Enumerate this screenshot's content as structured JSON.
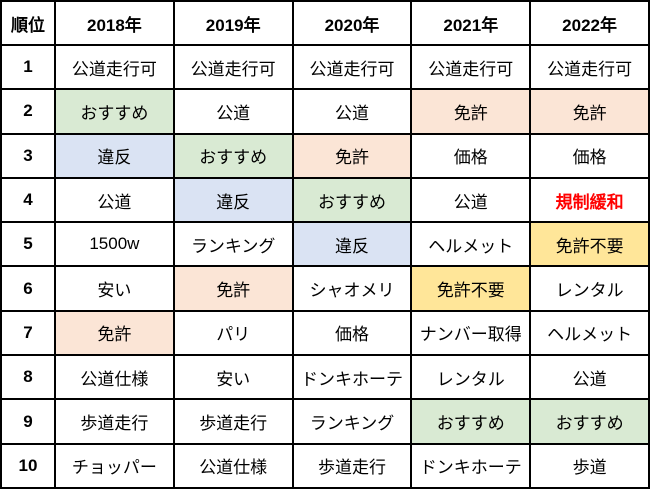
{
  "colors": {
    "border": "#000000",
    "green": "#d9ead3",
    "blue": "#dae3f3",
    "peach": "#fbe5d6",
    "yellow": "#ffe699",
    "red": "#ff0000"
  },
  "chart_data": {
    "type": "table",
    "columns": [
      "順位",
      "2018年",
      "2019年",
      "2020年",
      "2021年",
      "2022年"
    ],
    "rows": [
      {
        "rank": "1",
        "cells": [
          {
            "text": "公道走行可",
            "style": "plain"
          },
          {
            "text": "公道走行可",
            "style": "plain"
          },
          {
            "text": "公道走行可",
            "style": "plain"
          },
          {
            "text": "公道走行可",
            "style": "plain"
          },
          {
            "text": "公道走行可",
            "style": "plain"
          }
        ]
      },
      {
        "rank": "2",
        "cells": [
          {
            "text": "おすすめ",
            "style": "green"
          },
          {
            "text": "公道",
            "style": "plain"
          },
          {
            "text": "公道",
            "style": "plain"
          },
          {
            "text": "免許",
            "style": "peach"
          },
          {
            "text": "免許",
            "style": "peach"
          }
        ]
      },
      {
        "rank": "3",
        "cells": [
          {
            "text": "違反",
            "style": "blue"
          },
          {
            "text": "おすすめ",
            "style": "green"
          },
          {
            "text": "免許",
            "style": "peach"
          },
          {
            "text": "価格",
            "style": "plain"
          },
          {
            "text": "価格",
            "style": "plain"
          }
        ]
      },
      {
        "rank": "4",
        "cells": [
          {
            "text": "公道",
            "style": "plain"
          },
          {
            "text": "違反",
            "style": "blue"
          },
          {
            "text": "おすすめ",
            "style": "green"
          },
          {
            "text": "公道",
            "style": "plain"
          },
          {
            "text": "規制緩和",
            "style": "red-text"
          }
        ]
      },
      {
        "rank": "5",
        "cells": [
          {
            "text": "1500w",
            "style": "plain"
          },
          {
            "text": "ランキング",
            "style": "plain"
          },
          {
            "text": "違反",
            "style": "blue"
          },
          {
            "text": "ヘルメット",
            "style": "plain"
          },
          {
            "text": "免許不要",
            "style": "yellow"
          }
        ]
      },
      {
        "rank": "6",
        "cells": [
          {
            "text": "安い",
            "style": "plain"
          },
          {
            "text": "免許",
            "style": "peach"
          },
          {
            "text": "シャオメリ",
            "style": "plain"
          },
          {
            "text": "免許不要",
            "style": "yellow"
          },
          {
            "text": "レンタル",
            "style": "plain"
          }
        ]
      },
      {
        "rank": "7",
        "cells": [
          {
            "text": "免許",
            "style": "peach"
          },
          {
            "text": "パリ",
            "style": "plain"
          },
          {
            "text": "価格",
            "style": "plain"
          },
          {
            "text": "ナンバー取得",
            "style": "plain"
          },
          {
            "text": "ヘルメット",
            "style": "plain"
          }
        ]
      },
      {
        "rank": "8",
        "cells": [
          {
            "text": "公道仕様",
            "style": "plain"
          },
          {
            "text": "安い",
            "style": "plain"
          },
          {
            "text": "ドンキホーテ",
            "style": "plain"
          },
          {
            "text": "レンタル",
            "style": "plain"
          },
          {
            "text": "公道",
            "style": "plain"
          }
        ]
      },
      {
        "rank": "9",
        "cells": [
          {
            "text": "歩道走行",
            "style": "plain"
          },
          {
            "text": "歩道走行",
            "style": "plain"
          },
          {
            "text": "ランキング",
            "style": "plain"
          },
          {
            "text": "おすすめ",
            "style": "green"
          },
          {
            "text": "おすすめ",
            "style": "green"
          }
        ]
      },
      {
        "rank": "10",
        "cells": [
          {
            "text": "チョッパー",
            "style": "plain"
          },
          {
            "text": "公道仕様",
            "style": "plain"
          },
          {
            "text": "歩道走行",
            "style": "plain"
          },
          {
            "text": "ドンキホーテ",
            "style": "plain"
          },
          {
            "text": "歩道",
            "style": "plain"
          }
        ]
      }
    ]
  }
}
